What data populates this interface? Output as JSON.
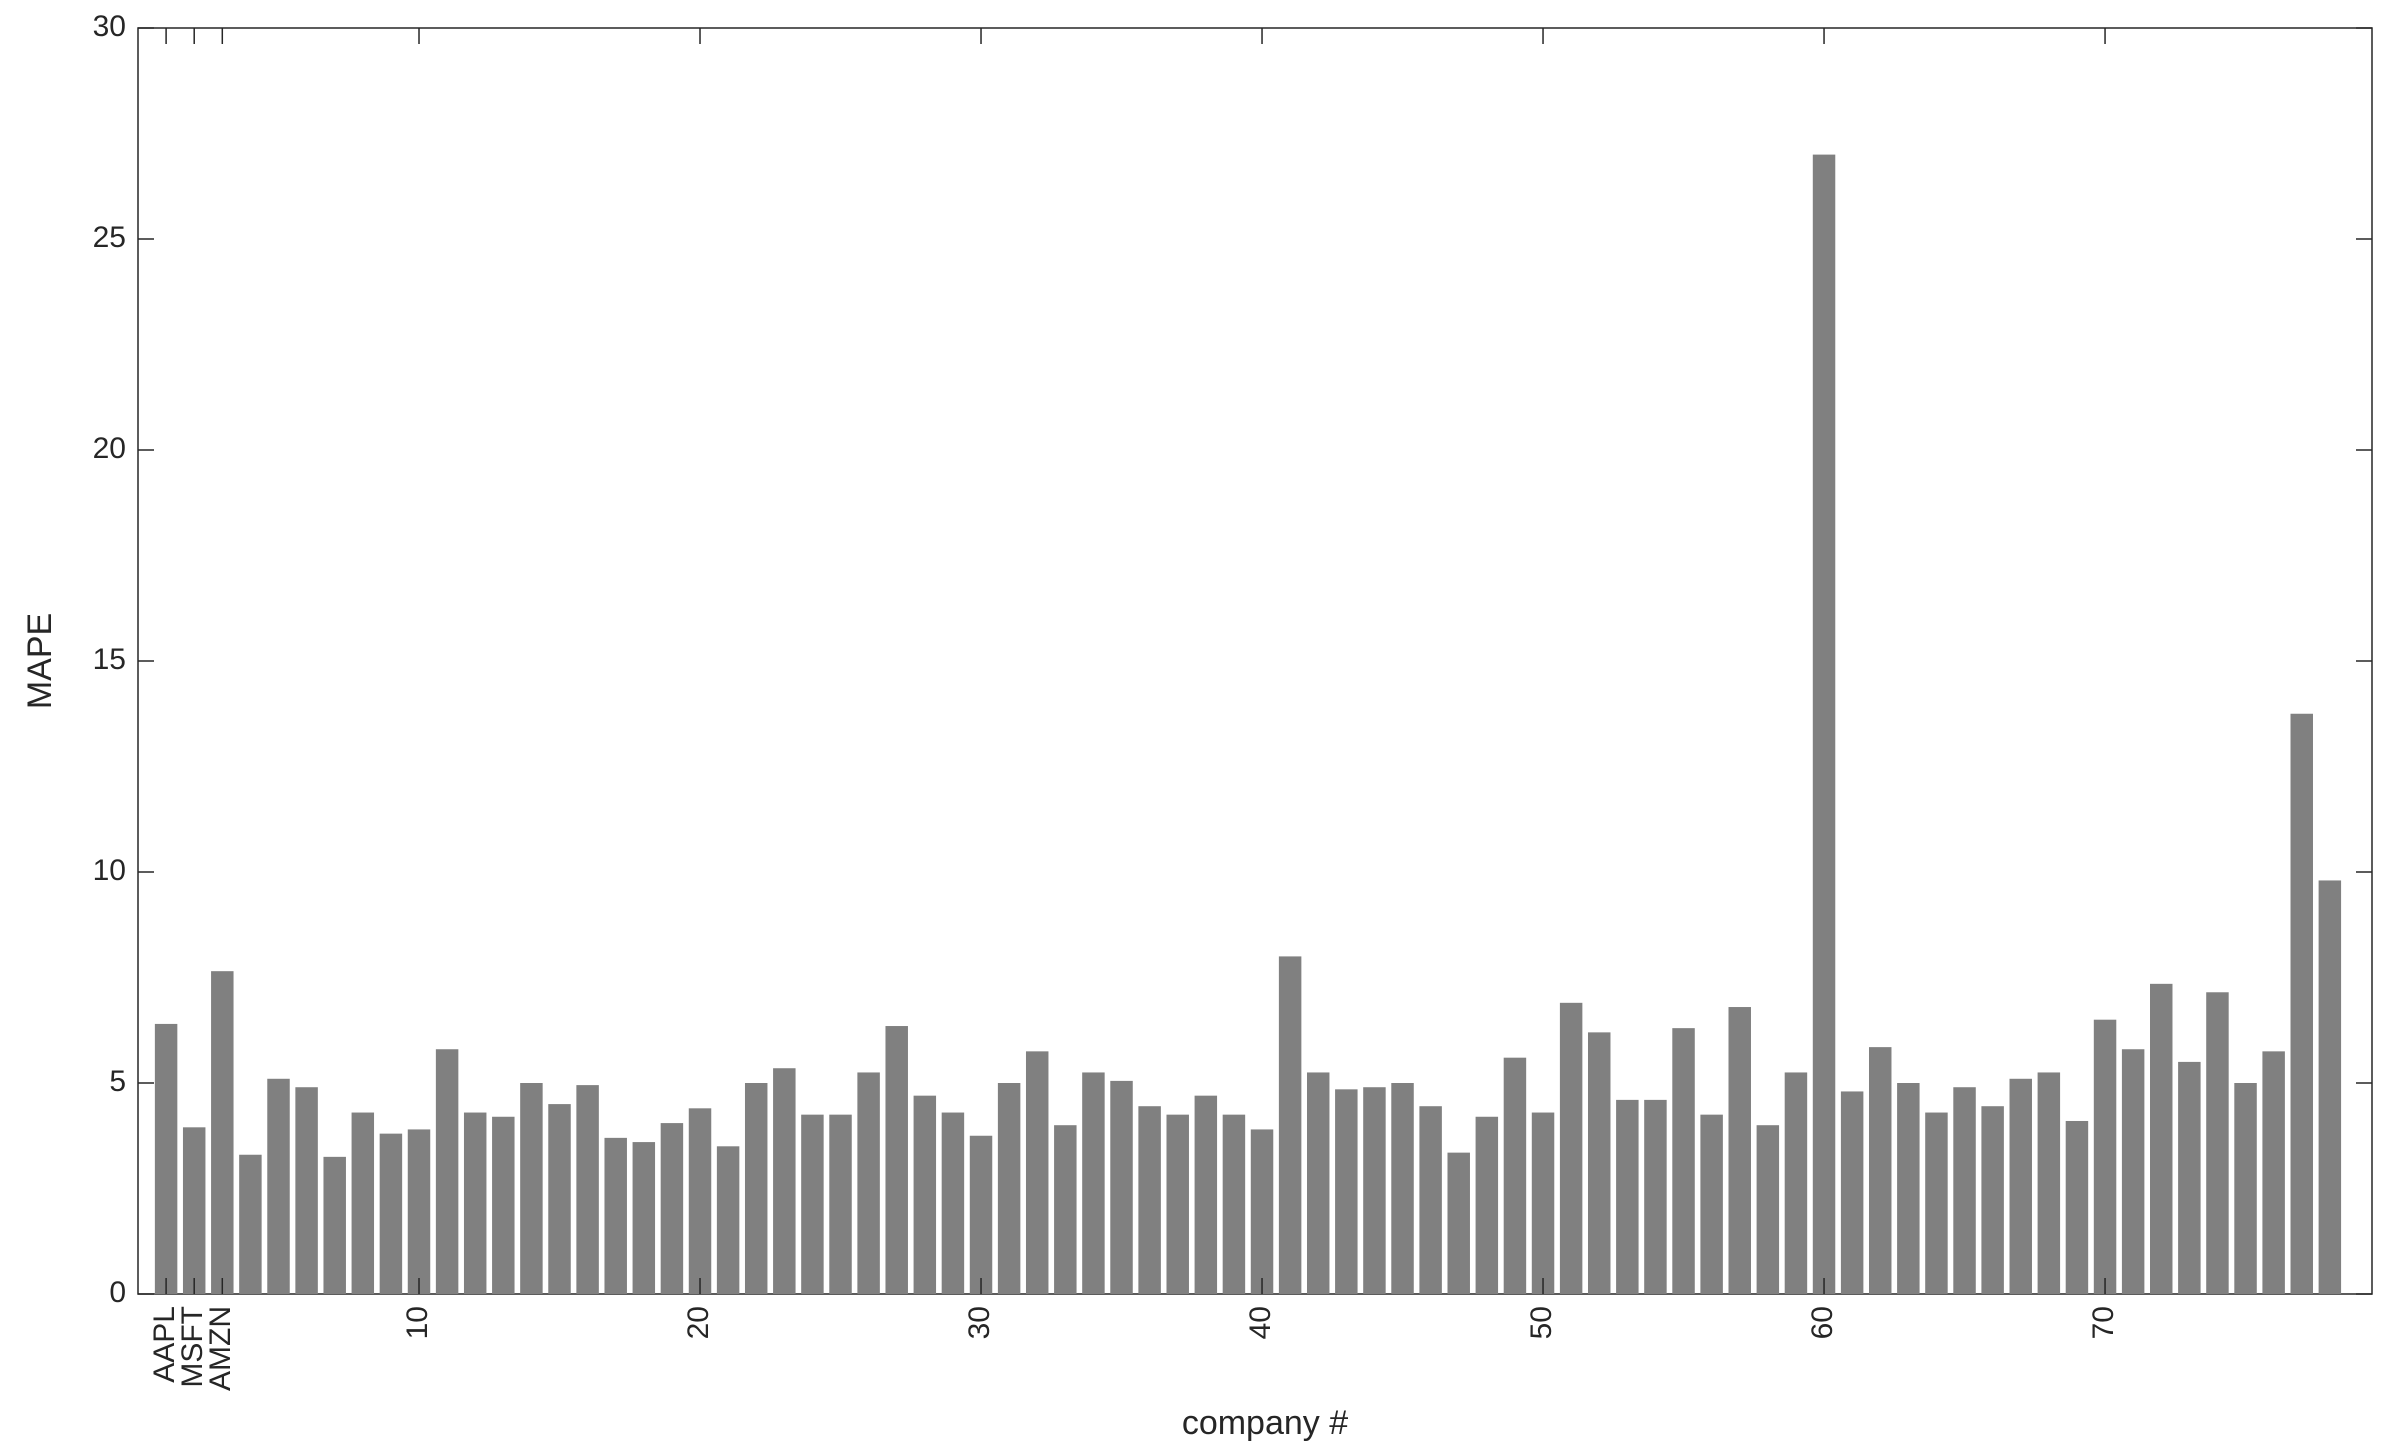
{
  "chart_data": {
    "type": "bar",
    "xlabel": "company #",
    "ylabel": "MAPE",
    "x": [
      1,
      2,
      3,
      4,
      5,
      6,
      7,
      8,
      9,
      10,
      11,
      12,
      13,
      14,
      15,
      16,
      17,
      18,
      19,
      20,
      21,
      22,
      23,
      24,
      25,
      26,
      27,
      28,
      29,
      30,
      31,
      32,
      33,
      34,
      35,
      36,
      37,
      38,
      39,
      40,
      41,
      42,
      43,
      44,
      45,
      46,
      47,
      48,
      49,
      50,
      51,
      52,
      53,
      54,
      55,
      56,
      57,
      58,
      59,
      60,
      61,
      62,
      63,
      64,
      65,
      66,
      67,
      68,
      69,
      70,
      71,
      72,
      73,
      74,
      75,
      76,
      77,
      78
    ],
    "values": [
      6.4,
      3.95,
      7.65,
      3.3,
      5.1,
      4.9,
      3.25,
      4.3,
      3.8,
      3.9,
      5.8,
      4.3,
      4.2,
      5.0,
      4.5,
      4.95,
      3.7,
      3.6,
      4.05,
      4.4,
      3.5,
      5.0,
      5.35,
      4.25,
      4.25,
      5.25,
      6.35,
      4.7,
      4.3,
      3.75,
      5.0,
      5.75,
      4.0,
      5.25,
      5.05,
      4.45,
      4.25,
      4.7,
      4.25,
      3.9,
      8.0,
      5.25,
      4.85,
      4.9,
      5.0,
      4.45,
      3.35,
      4.2,
      5.6,
      4.3,
      6.9,
      6.2,
      4.6,
      4.6,
      6.3,
      4.25,
      6.8,
      4.0,
      5.25,
      27.0,
      4.8,
      5.85,
      5.0,
      4.3,
      4.9,
      4.45,
      5.1,
      5.25,
      4.1,
      6.5,
      5.8,
      7.35,
      5.5,
      7.15,
      5.0,
      5.75,
      13.75,
      9.8
    ],
    "color": "#808080",
    "xlim": [
      0,
      79.5
    ],
    "xticks": [
      {
        "value": 1,
        "label": "AAPL"
      },
      {
        "value": 2,
        "label": "MSFT"
      },
      {
        "value": 3,
        "label": "AMZN"
      },
      10,
      20,
      30,
      40,
      50,
      60,
      70
    ],
    "ylim": [
      0,
      30
    ],
    "yticks": [
      0,
      5,
      10,
      15,
      20,
      25,
      30
    ],
    "grid": false
  }
}
